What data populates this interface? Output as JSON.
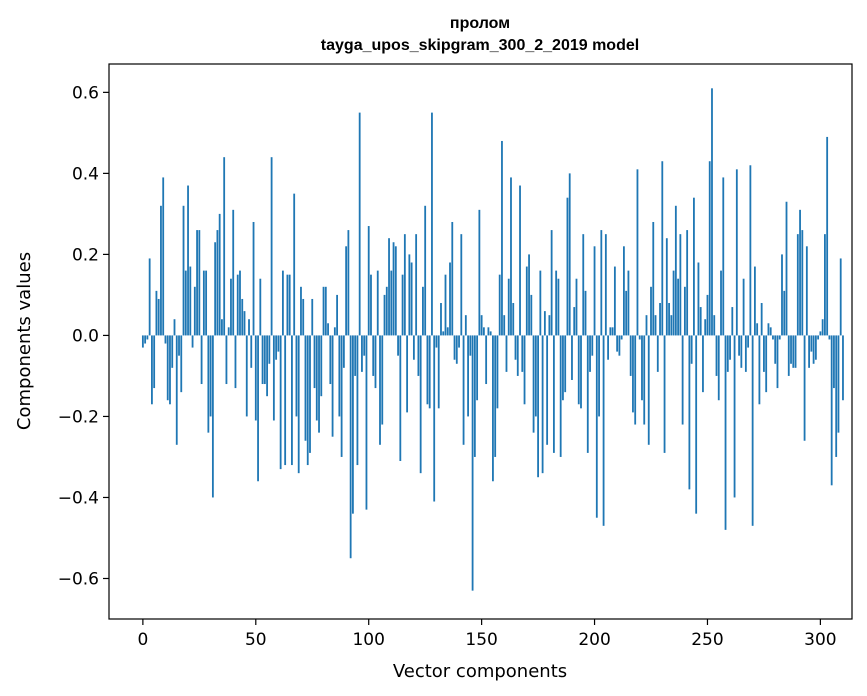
{
  "chart_data": {
    "type": "bar",
    "title_line1": "пролом",
    "title_line2": "tayga_upos_skipgram_300_2_2019 model",
    "xlabel": "Vector components",
    "ylabel": "Components values",
    "xlim": [
      -15,
      314
    ],
    "ylim": [
      -0.7,
      0.67
    ],
    "xticks": [
      0,
      50,
      100,
      150,
      200,
      250,
      300
    ],
    "xtick_labels": [
      "0",
      "50",
      "100",
      "150",
      "200",
      "250",
      "300"
    ],
    "yticks": [
      -0.6,
      -0.4,
      -0.2,
      0.0,
      0.2,
      0.4,
      0.6
    ],
    "ytick_labels": [
      "−0.6",
      "−0.4",
      "−0.2",
      "0.0",
      "0.2",
      "0.4",
      "0.6"
    ],
    "bar_color": "#1f77b4",
    "grid": false,
    "legend": "none",
    "values": [
      -0.03,
      -0.02,
      -0.01,
      0.19,
      -0.17,
      -0.13,
      0.11,
      0.09,
      0.32,
      0.39,
      -0.02,
      -0.16,
      -0.17,
      -0.08,
      0.04,
      -0.27,
      -0.05,
      -0.14,
      0.32,
      0.16,
      0.37,
      0.17,
      -0.03,
      0.12,
      0.26,
      0.26,
      -0.12,
      0.16,
      0.16,
      -0.24,
      -0.2,
      -0.4,
      0.23,
      0.26,
      0.3,
      0.04,
      0.44,
      -0.12,
      0.02,
      0.14,
      0.31,
      -0.13,
      0.15,
      0.16,
      0.09,
      0.06,
      -0.2,
      0.04,
      -0.08,
      0.28,
      -0.21,
      -0.36,
      0.14,
      -0.12,
      -0.12,
      -0.15,
      -0.07,
      0.44,
      -0.21,
      -0.06,
      -0.04,
      -0.33,
      0.16,
      -0.32,
      0.15,
      0.15,
      -0.32,
      0.35,
      -0.2,
      -0.34,
      0.12,
      0.09,
      -0.26,
      -0.32,
      -0.29,
      0.09,
      -0.13,
      -0.21,
      -0.24,
      -0.15,
      0.12,
      0.12,
      0.03,
      -0.12,
      -0.25,
      0.02,
      0.1,
      -0.2,
      -0.3,
      -0.08,
      0.22,
      0.26,
      -0.55,
      -0.44,
      -0.1,
      -0.32,
      0.55,
      -0.09,
      -0.05,
      -0.43,
      0.27,
      0.15,
      -0.1,
      -0.13,
      0.16,
      -0.27,
      -0.22,
      0.1,
      0.12,
      0.24,
      0.16,
      0.23,
      0.22,
      -0.05,
      -0.31,
      0.15,
      0.25,
      -0.19,
      0.2,
      0.18,
      -0.06,
      0.25,
      -0.1,
      -0.34,
      0.12,
      0.32,
      -0.17,
      -0.18,
      0.55,
      -0.41,
      -0.03,
      -0.18,
      0.08,
      0.01,
      0.15,
      0.02,
      0.18,
      0.28,
      -0.06,
      -0.07,
      -0.03,
      0.25,
      -0.27,
      0.05,
      -0.2,
      -0.05,
      -0.63,
      -0.3,
      -0.16,
      0.31,
      0.05,
      0.02,
      -0.12,
      0.02,
      0.01,
      -0.36,
      -0.3,
      -0.18,
      0.15,
      0.48,
      0.05,
      -0.09,
      0.14,
      0.39,
      0.08,
      -0.06,
      -0.1,
      0.37,
      -0.09,
      -0.17,
      0.17,
      0.2,
      0.1,
      -0.24,
      -0.2,
      -0.35,
      0.16,
      -0.34,
      0.06,
      -0.27,
      0.05,
      0.26,
      -0.29,
      0.16,
      0.14,
      -0.3,
      -0.16,
      -0.14,
      0.34,
      0.4,
      -0.11,
      0.07,
      0.14,
      -0.17,
      -0.18,
      0.25,
      0.11,
      -0.29,
      -0.09,
      -0.05,
      0.22,
      -0.45,
      -0.2,
      0.26,
      -0.47,
      0.25,
      -0.06,
      0.02,
      0.02,
      0.17,
      -0.04,
      -0.05,
      -0.01,
      0.22,
      0.11,
      0.16,
      -0.1,
      -0.19,
      -0.22,
      0.41,
      -0.01,
      -0.16,
      -0.22,
      0.05,
      -0.27,
      0.12,
      0.28,
      0.05,
      -0.09,
      0.08,
      0.43,
      -0.29,
      0.24,
      0.08,
      0.05,
      0.16,
      0.32,
      0.14,
      0.25,
      -0.22,
      0.12,
      0.26,
      -0.38,
      -0.07,
      0.34,
      -0.44,
      0.18,
      0.07,
      -0.14,
      0.04,
      0.1,
      0.43,
      0.61,
      0.05,
      -0.1,
      -0.16,
      0.16,
      0.39,
      -0.48,
      -0.09,
      -0.06,
      0.07,
      -0.4,
      0.41,
      -0.05,
      -0.08,
      0.14,
      -0.09,
      -0.03,
      0.42,
      -0.47,
      0.17,
      0.03,
      -0.17,
      0.08,
      -0.09,
      -0.14,
      0.03,
      0.02,
      -0.01,
      -0.07,
      -0.13,
      -0.01,
      0.2,
      0.11,
      0.33,
      -0.1,
      -0.07,
      -0.08,
      -0.08,
      0.25,
      0.31,
      0.26,
      -0.26,
      0.22,
      -0.08,
      -0.04,
      -0.07,
      -0.06,
      -0.01,
      0.01,
      0.04,
      0.25,
      0.49,
      -0.01,
      -0.37,
      -0.13,
      -0.3,
      -0.24,
      0.19,
      -0.16
    ]
  }
}
